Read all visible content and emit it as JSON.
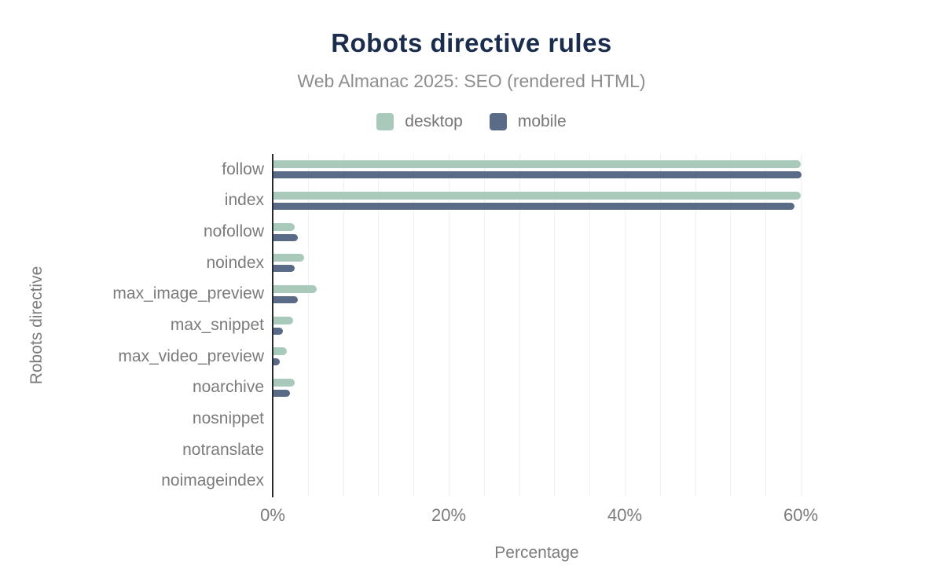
{
  "chart_data": {
    "type": "bar",
    "orientation": "horizontal",
    "title": "Robots directive rules",
    "subtitle": "Web Almanac 2025: SEO (rendered HTML)",
    "xlabel": "Percentage",
    "ylabel": "Robots directive",
    "xlim": [
      0,
      60
    ],
    "x_ticks": [
      {
        "value": 0,
        "label": "0%"
      },
      {
        "value": 20,
        "label": "20%"
      },
      {
        "value": 40,
        "label": "40%"
      },
      {
        "value": 60,
        "label": "60%"
      }
    ],
    "minor_gridline_step_pct": 4,
    "grid": true,
    "legend_position": "top",
    "categories": [
      "follow",
      "index",
      "nofollow",
      "noindex",
      "max_image_preview",
      "max_snippet",
      "max_video_preview",
      "noarchive",
      "nosnippet",
      "notranslate",
      "noimageindex"
    ],
    "series": [
      {
        "name": "desktop",
        "color": "#a9c9ba",
        "values": [
          59.9,
          59.9,
          2.4,
          3.5,
          4.9,
          2.2,
          1.5,
          2.4,
          0,
          0,
          0
        ]
      },
      {
        "name": "mobile",
        "color": "#5a6b87",
        "values": [
          60.0,
          59.2,
          2.8,
          2.4,
          2.8,
          1.1,
          0.7,
          1.9,
          0,
          0,
          0
        ]
      }
    ]
  },
  "colors": {
    "title": "#1b2d4d",
    "subtitle": "#8e8e8e",
    "axis_text": "#7b7b7b",
    "legend_text": "#757575",
    "gridline": "#f0f0f0",
    "axis_line": "#26282e",
    "background": "#ffffff",
    "desktop_bar": "#a9c9ba",
    "mobile_bar": "#5a6b87"
  }
}
